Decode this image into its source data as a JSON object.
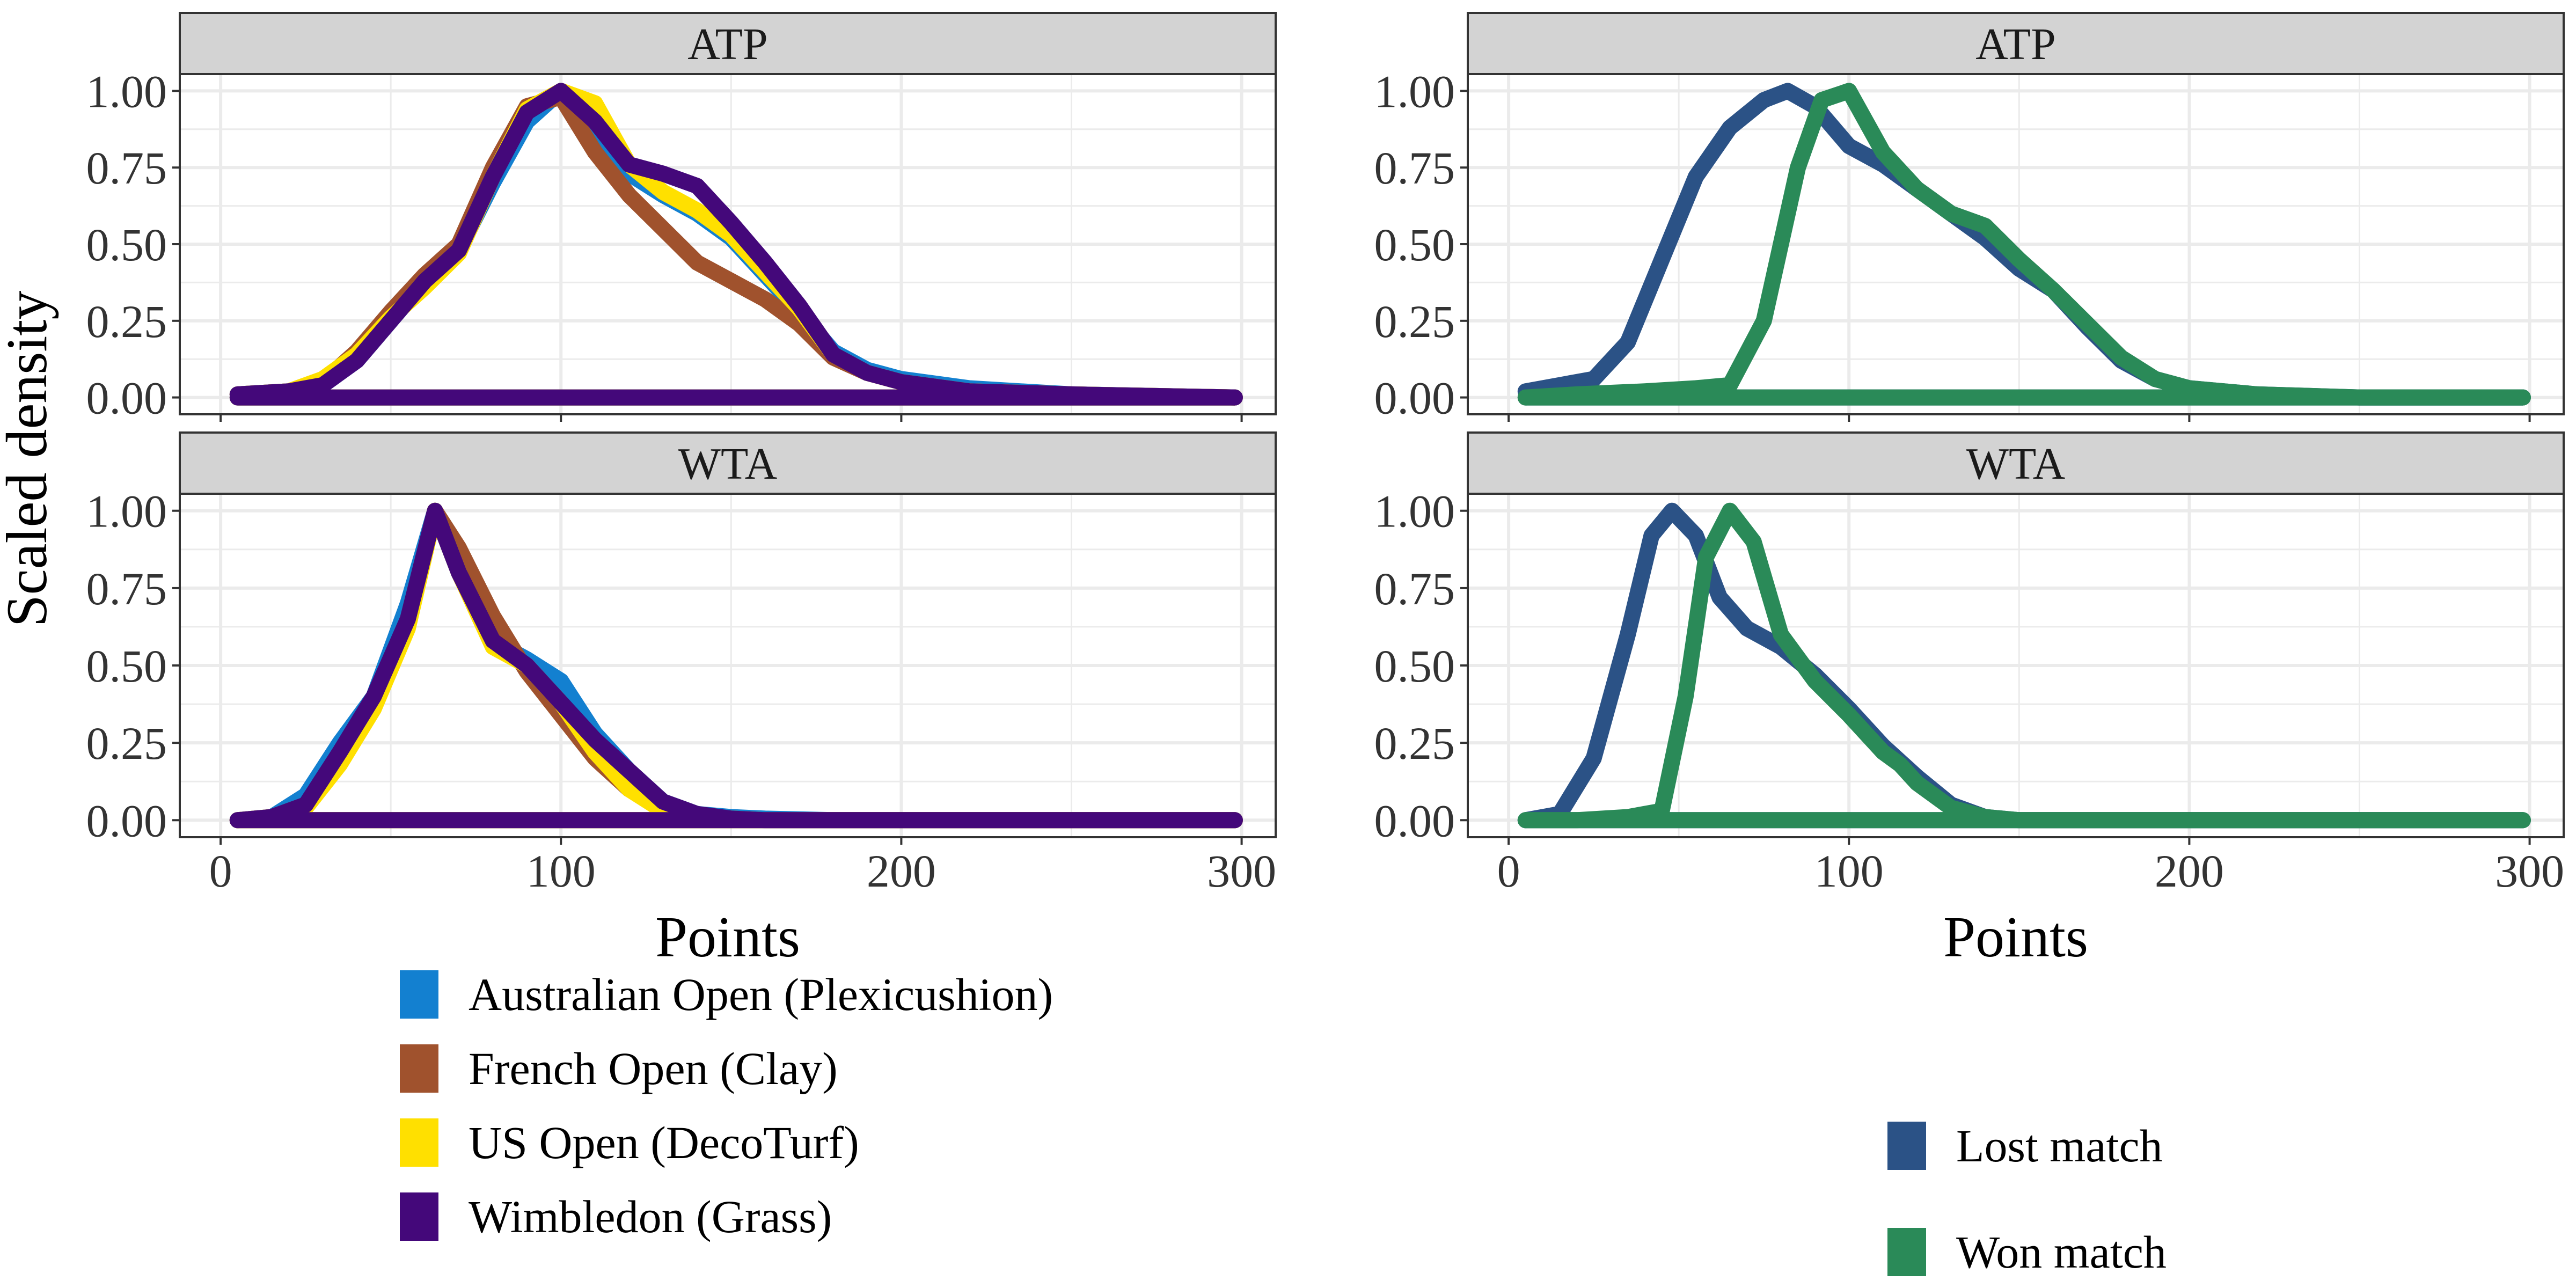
{
  "y_axis_label": "Scaled density",
  "colors": {
    "australian_open": "#1380D0",
    "french_open": "#A0522D",
    "us_open": "#FFE000",
    "wimbledon": "#44087A",
    "lost": "#2B5286",
    "won": "#2A8A58",
    "strip_fill": "#D3D3D3",
    "grid": "#EBEBEB"
  },
  "legends": [
    {
      "items": [
        {
          "label": "Australian Open (Plexicushion)",
          "color": "#1380D0"
        },
        {
          "label": "French Open (Clay)",
          "color": "#A0522D"
        },
        {
          "label": "US Open (DecoTurf)",
          "color": "#FFE000"
        },
        {
          "label": "Wimbledon (Grass)",
          "color": "#44087A"
        }
      ]
    },
    {
      "items": [
        {
          "label": "Lost match",
          "color": "#2B5286"
        },
        {
          "label": "Won match",
          "color": "#2A8A58"
        }
      ]
    }
  ],
  "chart_data": [
    {
      "type": "line",
      "panel": "ATP",
      "xlabel": "",
      "ylabel": "Scaled density",
      "xlim": [
        0,
        300
      ],
      "ylim": [
        0,
        1
      ],
      "xticks": [
        0,
        100,
        200,
        300
      ],
      "yticks": [
        "0.00",
        "0.25",
        "0.50",
        "0.75",
        "1.00"
      ],
      "grid": true,
      "series": [
        {
          "name": "Australian Open (Plexicushion)",
          "color": "#1380D0",
          "x": [
            5,
            20,
            30,
            40,
            50,
            60,
            70,
            80,
            90,
            100,
            110,
            120,
            130,
            140,
            150,
            160,
            170,
            180,
            190,
            200,
            220,
            250,
            298
          ],
          "y": [
            0.01,
            0.02,
            0.04,
            0.12,
            0.25,
            0.38,
            0.48,
            0.7,
            0.9,
            1.0,
            0.85,
            0.73,
            0.66,
            0.6,
            0.52,
            0.4,
            0.28,
            0.15,
            0.09,
            0.06,
            0.03,
            0.01,
            0.0
          ]
        },
        {
          "name": "French Open (Clay)",
          "color": "#A0522D",
          "x": [
            5,
            20,
            30,
            40,
            50,
            60,
            70,
            80,
            90,
            100,
            110,
            120,
            130,
            140,
            150,
            160,
            170,
            180,
            190,
            200,
            220,
            250,
            298
          ],
          "y": [
            0.01,
            0.02,
            0.05,
            0.15,
            0.28,
            0.4,
            0.5,
            0.75,
            0.95,
            0.98,
            0.8,
            0.66,
            0.55,
            0.44,
            0.38,
            0.32,
            0.24,
            0.13,
            0.08,
            0.05,
            0.02,
            0.01,
            0.0
          ]
        },
        {
          "name": "US Open (DecoTurf)",
          "color": "#FFE000",
          "x": [
            5,
            20,
            30,
            40,
            50,
            60,
            70,
            80,
            90,
            100,
            110,
            120,
            130,
            140,
            150,
            160,
            170,
            180,
            190,
            200,
            220,
            250,
            298
          ],
          "y": [
            0.01,
            0.02,
            0.06,
            0.14,
            0.26,
            0.36,
            0.47,
            0.72,
            0.94,
            1.0,
            0.96,
            0.76,
            0.67,
            0.61,
            0.53,
            0.41,
            0.29,
            0.14,
            0.08,
            0.05,
            0.02,
            0.01,
            0.0
          ]
        },
        {
          "name": "Wimbledon (Grass)",
          "color": "#44087A",
          "x": [
            5,
            20,
            30,
            40,
            50,
            60,
            70,
            80,
            90,
            100,
            110,
            120,
            130,
            140,
            150,
            160,
            170,
            180,
            190,
            200,
            220,
            250,
            298
          ],
          "y": [
            0.01,
            0.02,
            0.04,
            0.12,
            0.25,
            0.38,
            0.48,
            0.72,
            0.93,
            1.0,
            0.9,
            0.76,
            0.73,
            0.69,
            0.57,
            0.44,
            0.3,
            0.14,
            0.08,
            0.05,
            0.02,
            0.01,
            0.0
          ]
        }
      ]
    },
    {
      "type": "line",
      "panel": "WTA",
      "xlabel": "Points",
      "ylabel": "Scaled density",
      "xlim": [
        0,
        300
      ],
      "ylim": [
        0,
        1
      ],
      "xticks": [
        0,
        100,
        200,
        300
      ],
      "yticks": [
        "0.00",
        "0.25",
        "0.50",
        "0.75",
        "1.00"
      ],
      "grid": true,
      "series": [
        {
          "name": "Australian Open (Plexicushion)",
          "color": "#1380D0",
          "x": [
            5,
            15,
            25,
            35,
            45,
            55,
            63,
            70,
            80,
            90,
            100,
            110,
            120,
            130,
            140,
            150,
            160,
            180,
            220,
            298
          ],
          "y": [
            0.0,
            0.01,
            0.08,
            0.25,
            0.4,
            0.7,
            1.0,
            0.8,
            0.58,
            0.52,
            0.45,
            0.28,
            0.16,
            0.06,
            0.02,
            0.01,
            0.005,
            0.0,
            0.0,
            0.0
          ]
        },
        {
          "name": "French Open (Clay)",
          "color": "#A0522D",
          "x": [
            5,
            15,
            25,
            35,
            45,
            55,
            63,
            70,
            80,
            90,
            100,
            110,
            120,
            130,
            140,
            150,
            160,
            180,
            220,
            298
          ],
          "y": [
            0.0,
            0.01,
            0.05,
            0.2,
            0.38,
            0.65,
            1.0,
            0.88,
            0.66,
            0.48,
            0.34,
            0.2,
            0.1,
            0.04,
            0.01,
            0.005,
            0.0,
            0.0,
            0.0,
            0.0
          ]
        },
        {
          "name": "US Open (DecoTurf)",
          "color": "#FFE000",
          "x": [
            5,
            15,
            25,
            35,
            45,
            55,
            63,
            70,
            80,
            90,
            100,
            110,
            120,
            130,
            140,
            150,
            160,
            180,
            220,
            298
          ],
          "y": [
            0.0,
            0.01,
            0.04,
            0.18,
            0.36,
            0.62,
            1.0,
            0.8,
            0.56,
            0.5,
            0.38,
            0.22,
            0.1,
            0.03,
            0.01,
            0.005,
            0.0,
            0.0,
            0.0,
            0.0
          ]
        },
        {
          "name": "Wimbledon (Grass)",
          "color": "#44087A",
          "x": [
            5,
            15,
            25,
            35,
            45,
            55,
            63,
            70,
            80,
            90,
            100,
            110,
            120,
            130,
            140,
            150,
            160,
            180,
            220,
            298
          ],
          "y": [
            0.0,
            0.01,
            0.05,
            0.22,
            0.4,
            0.65,
            1.0,
            0.8,
            0.58,
            0.5,
            0.38,
            0.26,
            0.16,
            0.06,
            0.02,
            0.005,
            0.0,
            0.0,
            0.0,
            0.0
          ]
        }
      ]
    },
    {
      "type": "line",
      "panel": "ATP",
      "xlabel": "",
      "ylabel": "",
      "xlim": [
        0,
        300
      ],
      "ylim": [
        0,
        1
      ],
      "xticks": [
        0,
        100,
        200,
        300
      ],
      "yticks": [
        "0.00",
        "0.25",
        "0.50",
        "0.75",
        "1.00"
      ],
      "grid": true,
      "series": [
        {
          "name": "Lost match",
          "color": "#2B5286",
          "x": [
            5,
            15,
            25,
            35,
            45,
            55,
            65,
            75,
            82,
            90,
            100,
            110,
            120,
            130,
            140,
            150,
            160,
            170,
            180,
            190,
            200,
            220,
            250,
            298
          ],
          "y": [
            0.02,
            0.04,
            0.06,
            0.18,
            0.45,
            0.72,
            0.88,
            0.97,
            1.0,
            0.95,
            0.82,
            0.76,
            0.68,
            0.6,
            0.52,
            0.42,
            0.35,
            0.23,
            0.12,
            0.06,
            0.03,
            0.01,
            0.0,
            0.0
          ]
        },
        {
          "name": "Won match",
          "color": "#2A8A58",
          "x": [
            5,
            20,
            40,
            55,
            65,
            75,
            85,
            92,
            100,
            110,
            120,
            130,
            140,
            150,
            160,
            170,
            180,
            190,
            200,
            220,
            250,
            298
          ],
          "y": [
            0.0,
            0.01,
            0.02,
            0.03,
            0.04,
            0.25,
            0.75,
            0.97,
            1.0,
            0.8,
            0.68,
            0.6,
            0.56,
            0.45,
            0.35,
            0.24,
            0.13,
            0.06,
            0.03,
            0.01,
            0.0,
            0.0
          ]
        }
      ]
    },
    {
      "type": "line",
      "panel": "WTA",
      "xlabel": "Points",
      "ylabel": "",
      "xlim": [
        0,
        300
      ],
      "ylim": [
        0,
        1
      ],
      "xticks": [
        0,
        100,
        200,
        300
      ],
      "yticks": [
        "0.00",
        "0.25",
        "0.50",
        "0.75",
        "1.00"
      ],
      "grid": true,
      "series": [
        {
          "name": "Lost match",
          "color": "#2B5286",
          "x": [
            5,
            15,
            25,
            35,
            42,
            48,
            55,
            62,
            70,
            80,
            90,
            100,
            110,
            120,
            130,
            140,
            150,
            160,
            180,
            220,
            298
          ],
          "y": [
            0.0,
            0.02,
            0.2,
            0.6,
            0.92,
            1.0,
            0.92,
            0.72,
            0.62,
            0.56,
            0.47,
            0.36,
            0.24,
            0.14,
            0.05,
            0.01,
            0.0,
            0.0,
            0.0,
            0.0,
            0.0
          ]
        },
        {
          "name": "Won match",
          "color": "#2A8A58",
          "x": [
            5,
            20,
            35,
            45,
            52,
            58,
            65,
            72,
            80,
            90,
            100,
            110,
            115,
            120,
            130,
            140,
            150,
            180,
            220,
            298
          ],
          "y": [
            0.0,
            0.0,
            0.01,
            0.03,
            0.4,
            0.85,
            1.0,
            0.9,
            0.6,
            0.45,
            0.34,
            0.22,
            0.18,
            0.12,
            0.04,
            0.01,
            0.0,
            0.0,
            0.0,
            0.0
          ]
        }
      ]
    }
  ]
}
